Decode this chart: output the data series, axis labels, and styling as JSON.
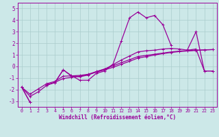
{
  "xlabel": "Windchill (Refroidissement éolien,°C)",
  "x": [
    0,
    1,
    2,
    3,
    4,
    5,
    6,
    7,
    8,
    9,
    10,
    11,
    12,
    13,
    14,
    15,
    16,
    17,
    18,
    19,
    20,
    21,
    22,
    23
  ],
  "vals1": [
    -1.8,
    -3.1,
    null,
    -1.6,
    -1.4,
    -0.3,
    -0.8,
    -1.2,
    -1.2,
    -0.6,
    -0.4,
    0.2,
    2.2,
    4.2,
    4.7,
    4.2,
    4.4,
    3.6,
    1.8,
    null,
    1.5,
    3.0,
    -0.4,
    -0.4
  ],
  "vals2": [
    -1.8,
    -3.1,
    null,
    -1.6,
    -1.4,
    -0.3,
    -0.85,
    -0.9,
    -0.75,
    -0.45,
    -0.25,
    0.15,
    0.55,
    0.9,
    1.25,
    1.35,
    1.4,
    1.5,
    1.55,
    1.5,
    1.4,
    1.5,
    -0.4,
    -0.4
  ],
  "vals3": [
    -1.8,
    -2.4,
    -1.95,
    -1.5,
    -1.3,
    -0.85,
    -0.82,
    -0.78,
    -0.68,
    -0.45,
    -0.22,
    0.05,
    0.32,
    0.58,
    0.85,
    0.95,
    1.05,
    1.15,
    1.25,
    1.32,
    1.36,
    1.4,
    1.43,
    1.45
  ],
  "vals4": [
    -1.8,
    -2.6,
    -2.2,
    -1.65,
    -1.38,
    -1.05,
    -0.95,
    -0.85,
    -0.72,
    -0.5,
    -0.3,
    -0.08,
    0.18,
    0.44,
    0.72,
    0.84,
    0.98,
    1.1,
    1.2,
    1.28,
    1.33,
    1.38,
    1.42,
    1.45
  ],
  "ylim": [
    -3.5,
    5.5
  ],
  "xlim": [
    -0.5,
    23.5
  ],
  "yticks": [
    -3,
    -2,
    -1,
    0,
    1,
    2,
    3,
    4,
    5
  ],
  "color": "#990099",
  "bg_color": "#cce8e8",
  "grid_color": "#aacccc",
  "tick_color": "#990099",
  "label_color": "#990099"
}
